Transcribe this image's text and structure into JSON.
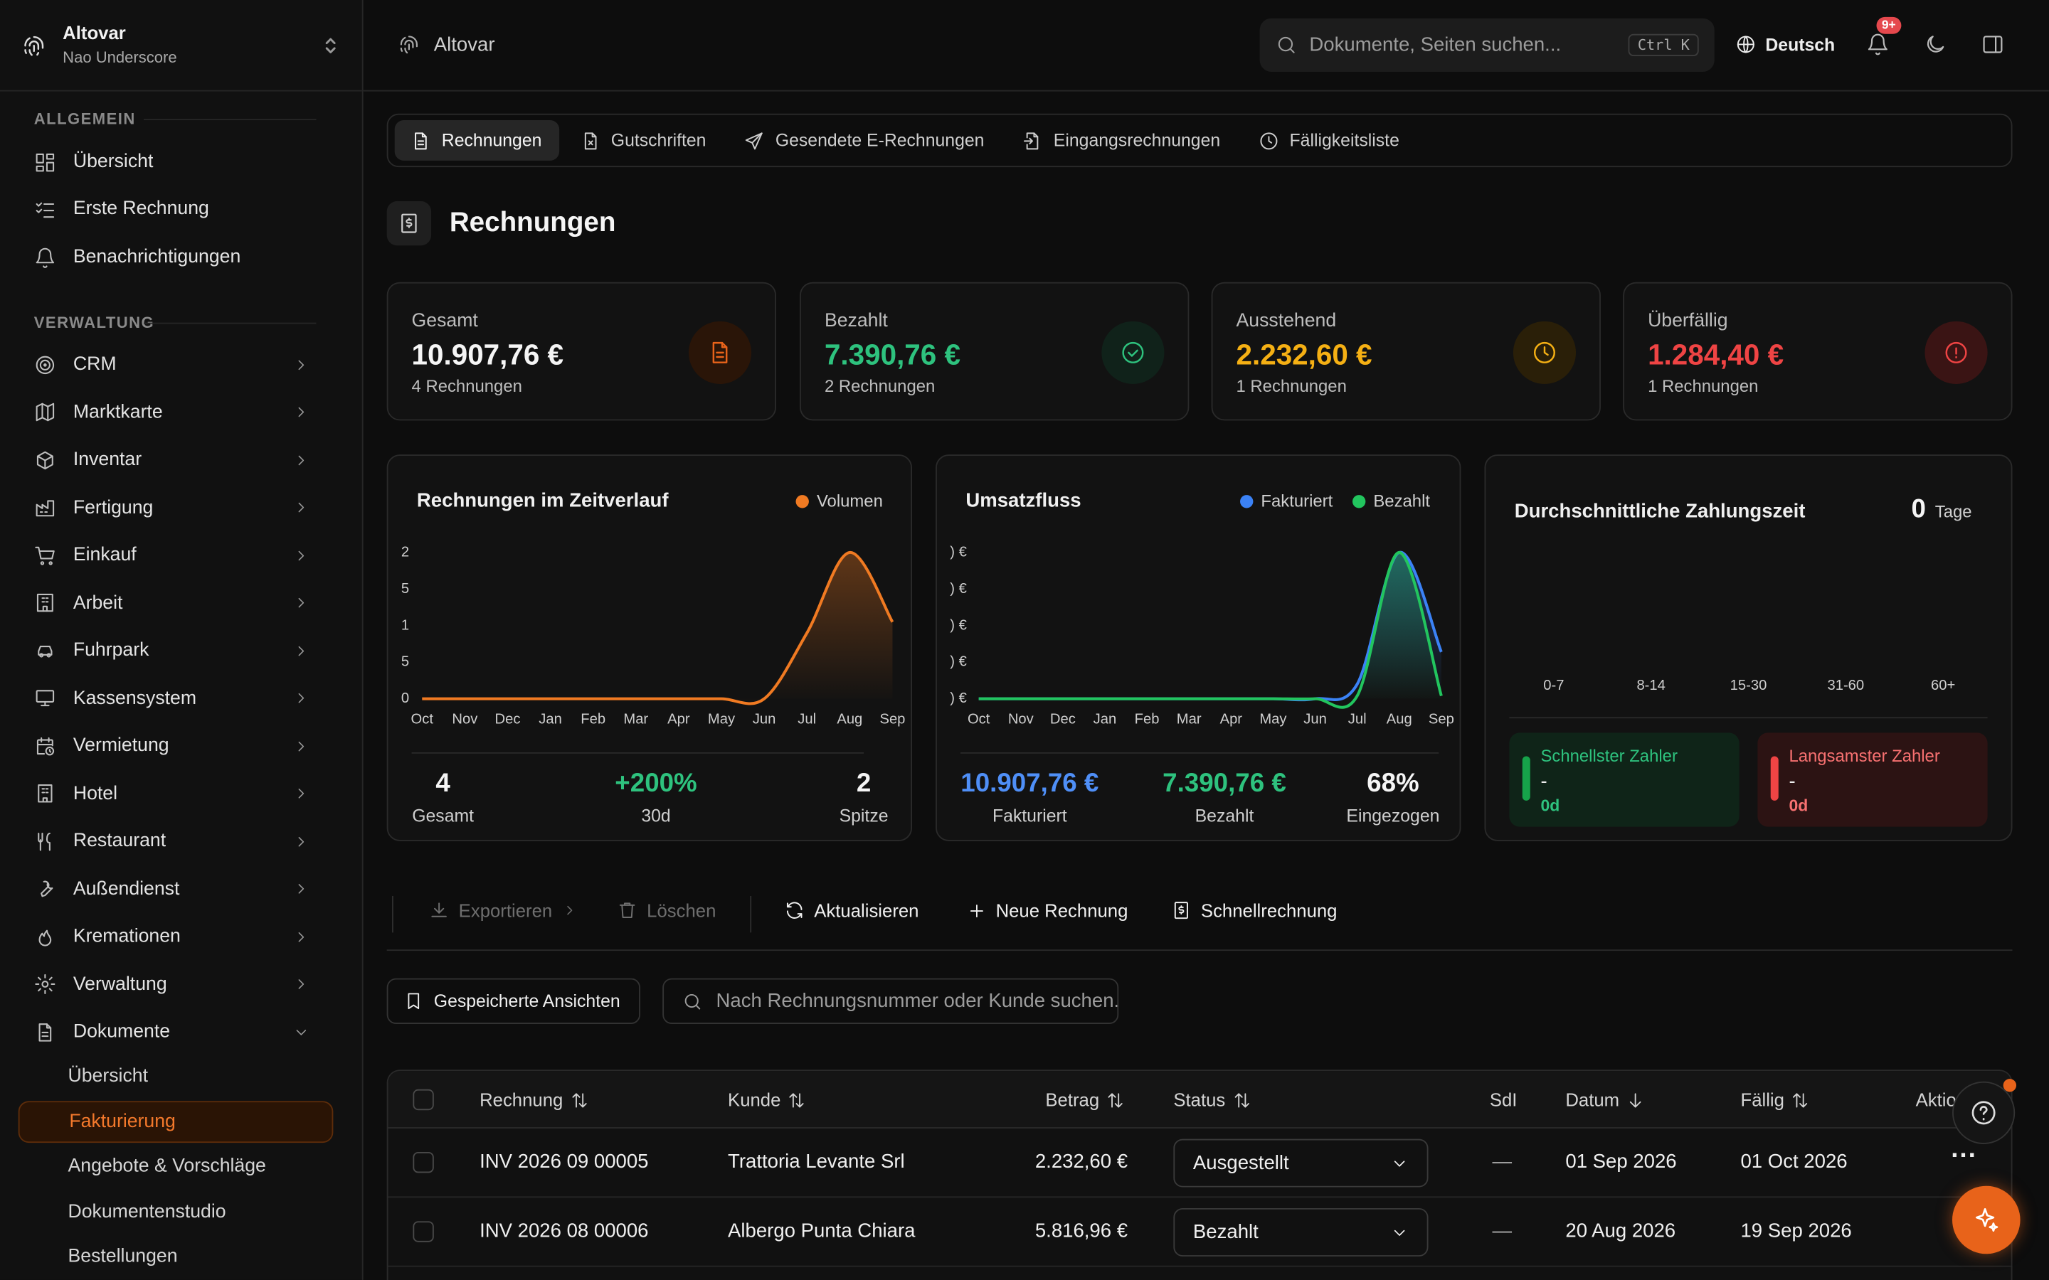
{
  "workspace": {
    "name": "Altovar",
    "user": "Nao Underscore"
  },
  "sidebar": {
    "section_general": "ALLGEMEIN",
    "general": [
      {
        "label": "Übersicht",
        "icon": "dashboard-icon"
      },
      {
        "label": "Erste Rechnung",
        "icon": "checklist-icon"
      },
      {
        "label": "Benachrichtigungen",
        "icon": "bell-icon"
      }
    ],
    "section_admin": "VERWALTUNG",
    "admin": [
      {
        "label": "CRM",
        "icon": "target-icon"
      },
      {
        "label": "Marktkarte",
        "icon": "map-icon"
      },
      {
        "label": "Inventar",
        "icon": "box-icon"
      },
      {
        "label": "Fertigung",
        "icon": "factory-icon"
      },
      {
        "label": "Einkauf",
        "icon": "cart-icon"
      },
      {
        "label": "Arbeit",
        "icon": "building-icon"
      },
      {
        "label": "Fuhrpark",
        "icon": "car-icon"
      },
      {
        "label": "Kassensystem",
        "icon": "monitor-icon"
      },
      {
        "label": "Vermietung",
        "icon": "calendar-clock-icon"
      },
      {
        "label": "Hotel",
        "icon": "hotel-icon"
      },
      {
        "label": "Restaurant",
        "icon": "utensils-icon"
      },
      {
        "label": "Außendienst",
        "icon": "wrench-icon"
      },
      {
        "label": "Kremationen",
        "icon": "flame-icon"
      },
      {
        "label": "Verwaltung",
        "icon": "gear-icon"
      },
      {
        "label": "Dokumente",
        "icon": "document-icon"
      }
    ],
    "documents_sub": [
      "Übersicht",
      "Fakturierung",
      "Angebote & Vorschläge",
      "Dokumentenstudio",
      "Bestellungen"
    ]
  },
  "topbar": {
    "breadcrumb": "Altovar",
    "search_placeholder": "Dokumente, Seiten suchen...",
    "shortcut": "Ctrl K",
    "language": "Deutsch",
    "notification_count": "9+"
  },
  "tabs": [
    "Rechnungen",
    "Gutschriften",
    "Gesendete E-Rechnungen",
    "Eingangsrechnungen",
    "Fälligkeitsliste"
  ],
  "page_title": "Rechnungen",
  "kpis": [
    {
      "label": "Gesamt",
      "value": "10.907,76 €",
      "sub": "4 Rechnungen",
      "color": "#f5f5f5",
      "accent": "#e8631a"
    },
    {
      "label": "Bezahlt",
      "value": "7.390,76 €",
      "sub": "2 Rechnungen",
      "color": "#2ec27e",
      "accent": "#2ec27e"
    },
    {
      "label": "Ausstehend",
      "value": "2.232,60 €",
      "sub": "1 Rechnungen",
      "color": "#f5b014",
      "accent": "#f5b014"
    },
    {
      "label": "Überfällig",
      "value": "1.284,40 €",
      "sub": "1 Rechnungen",
      "color": "#ef4444",
      "accent": "#ef4444"
    }
  ],
  "chart1": {
    "title": "Rechnungen im Zeitverlauf",
    "legend": "Volumen",
    "ylabels": [
      "2",
      "5",
      "1",
      "5",
      "0"
    ],
    "stats": [
      {
        "value": "4",
        "label": "Gesamt"
      },
      {
        "value": "+200%",
        "label": "30d"
      },
      {
        "value": "2",
        "label": "Spitze"
      }
    ]
  },
  "chart2": {
    "title": "Umsatzfluss",
    "legend": [
      "Fakturiert",
      "Bezahlt"
    ],
    "ylabels": [
      ") €",
      ") €",
      ") €",
      ") €",
      ") €"
    ],
    "stats": [
      {
        "value": "10.907,76 €",
        "label": "Fakturiert"
      },
      {
        "value": "7.390,76 €",
        "label": "Bezahlt"
      },
      {
        "value": "68%",
        "label": "Eingezogen"
      }
    ]
  },
  "chart3": {
    "title": "Durchschnittliche Zahlungszeit",
    "value": "0",
    "unit": "Tage",
    "buckets": [
      "0-7",
      "8-14",
      "15-30",
      "31-60",
      "60+"
    ],
    "fastest": {
      "label": "Schnellster Zahler",
      "name": "-",
      "days": "0d"
    },
    "slowest": {
      "label": "Langsamster Zahler",
      "name": "-",
      "days": "0d"
    }
  },
  "chart_data": [
    {
      "type": "area",
      "title": "Rechnungen im Zeitverlauf",
      "x": [
        "Oct",
        "Nov",
        "Dec",
        "Jan",
        "Feb",
        "Mar",
        "Apr",
        "May",
        "Jun",
        "Jul",
        "Aug",
        "Sep"
      ],
      "series": [
        {
          "name": "Volumen",
          "values": [
            0,
            0,
            0,
            0,
            0,
            0,
            0,
            0,
            0,
            0.9,
            2,
            1.05
          ]
        }
      ]
    },
    {
      "type": "area",
      "title": "Umsatzfluss",
      "x": [
        "Oct",
        "Nov",
        "Dec",
        "Jan",
        "Feb",
        "Mar",
        "Apr",
        "May",
        "Jun",
        "Jul",
        "Aug",
        "Sep"
      ],
      "series": [
        {
          "name": "Fakturiert",
          "values": [
            0,
            0,
            0,
            0,
            0,
            0,
            0,
            0,
            0,
            0.1,
            1,
            0.32
          ]
        },
        {
          "name": "Bezahlt",
          "values": [
            0,
            0,
            0,
            0,
            0,
            0,
            0,
            0,
            0,
            0.02,
            1,
            0.02
          ]
        }
      ]
    }
  ],
  "actions": {
    "export": "Exportieren",
    "delete": "Löschen",
    "refresh": "Aktualisieren",
    "new_invoice": "Neue Rechnung",
    "quick_invoice": "Schnellrechnung"
  },
  "saved_views": "Gespeicherte Ansichten",
  "table_search_placeholder": "Nach Rechnungsnummer oder Kunde suchen...",
  "table": {
    "headers": {
      "invoice": "Rechnung",
      "customer": "Kunde",
      "amount": "Betrag",
      "status": "Status",
      "sdi": "SdI",
      "date": "Datum",
      "due": "Fällig",
      "actions": "Aktionen"
    },
    "rows": [
      {
        "invoice": "INV 2026 09 00005",
        "customer": "Trattoria Levante Srl",
        "amount": "2.232,60 €",
        "status": "Ausgestellt",
        "sdi": "—",
        "date": "01 Sep 2026",
        "due": "01 Oct 2026"
      },
      {
        "invoice": "INV 2026 08 00006",
        "customer": "Albergo Punta Chiara",
        "amount": "5.816,96 €",
        "status": "Bezahlt",
        "sdi": "—",
        "date": "20 Aug 2026",
        "due": "19 Sep 2026"
      }
    ]
  }
}
